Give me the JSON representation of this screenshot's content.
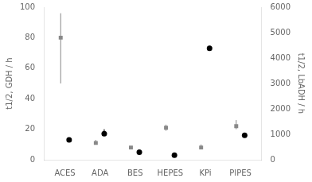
{
  "chart_data": {
    "type": "scatter",
    "categories": [
      "ACES",
      "ADA",
      "BES",
      "HEPES",
      "KPi",
      "PIPES"
    ],
    "series": [
      {
        "color": "#888888",
        "marker": "square",
        "values": [
          80,
          11,
          8,
          21,
          8,
          22
        ],
        "yerr_lo": [
          30,
          1,
          1,
          2,
          1,
          2
        ],
        "yerr_hi": [
          16,
          2,
          1,
          2,
          2,
          4
        ]
      },
      {
        "color": "#000000",
        "marker": "circle",
        "values": [
          13,
          17,
          5,
          3,
          73,
          16
        ],
        "yerr_lo": [
          0,
          1,
          0.5,
          0.3,
          1,
          1
        ],
        "yerr_hi": [
          0,
          3,
          0.5,
          0.3,
          1,
          1
        ]
      }
    ],
    "ylabel": "t1/2, GDH / h",
    "y2label": "t1/2, LbADH / h",
    "ylim": [
      0,
      100
    ],
    "yticks": [
      0,
      20,
      40,
      60,
      80,
      100
    ],
    "y2lim": [
      0,
      6000
    ],
    "y2ticks": [
      0,
      1000,
      2000,
      3000,
      4000,
      5000,
      6000
    ],
    "grid": false
  }
}
